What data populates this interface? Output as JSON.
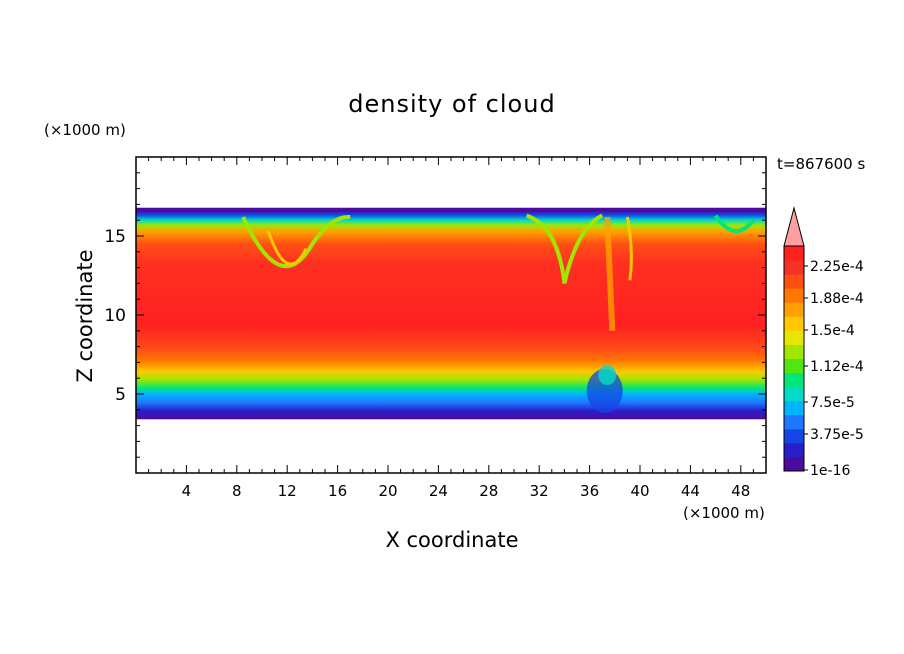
{
  "chart_data": {
    "type": "heatmap",
    "title": "density of cloud",
    "xlabel": "X coordinate",
    "ylabel": "Z coordinate",
    "x_unit": "(×1000 m)",
    "y_unit": "(×1000 m)",
    "time_label": "t=867600 s",
    "xlim": [
      0,
      50
    ],
    "ylim": [
      0,
      20
    ],
    "x_ticks": [
      4,
      8,
      12,
      16,
      20,
      24,
      28,
      32,
      36,
      40,
      44,
      48
    ],
    "y_ticks": [
      5,
      10,
      15
    ],
    "colorbar": {
      "labels": [
        "2.25e-4",
        "1.88e-4",
        "1.5e-4",
        "1.12e-4",
        "7.5e-5",
        "3.75e-5",
        "1e-16"
      ],
      "colors": [
        "#4b0aa0",
        "#2a1ec8",
        "#1446e6",
        "#1e78ff",
        "#00b4ff",
        "#00dcc8",
        "#00e678",
        "#50e614",
        "#a0e600",
        "#e6e600",
        "#ffc800",
        "#ffa000",
        "#ff7800",
        "#ff5014",
        "#f53228",
        "#ff2020"
      ],
      "extend_color": "#ffa0a0"
    },
    "cloud_layer": {
      "base_z": 3.4,
      "top_z": 16.6,
      "core_z_range": [
        7.5,
        14.5
      ],
      "core_value_range": [
        "2.25e-4",
        "1.88e-4"
      ],
      "edge_value": "1e-16"
    }
  }
}
